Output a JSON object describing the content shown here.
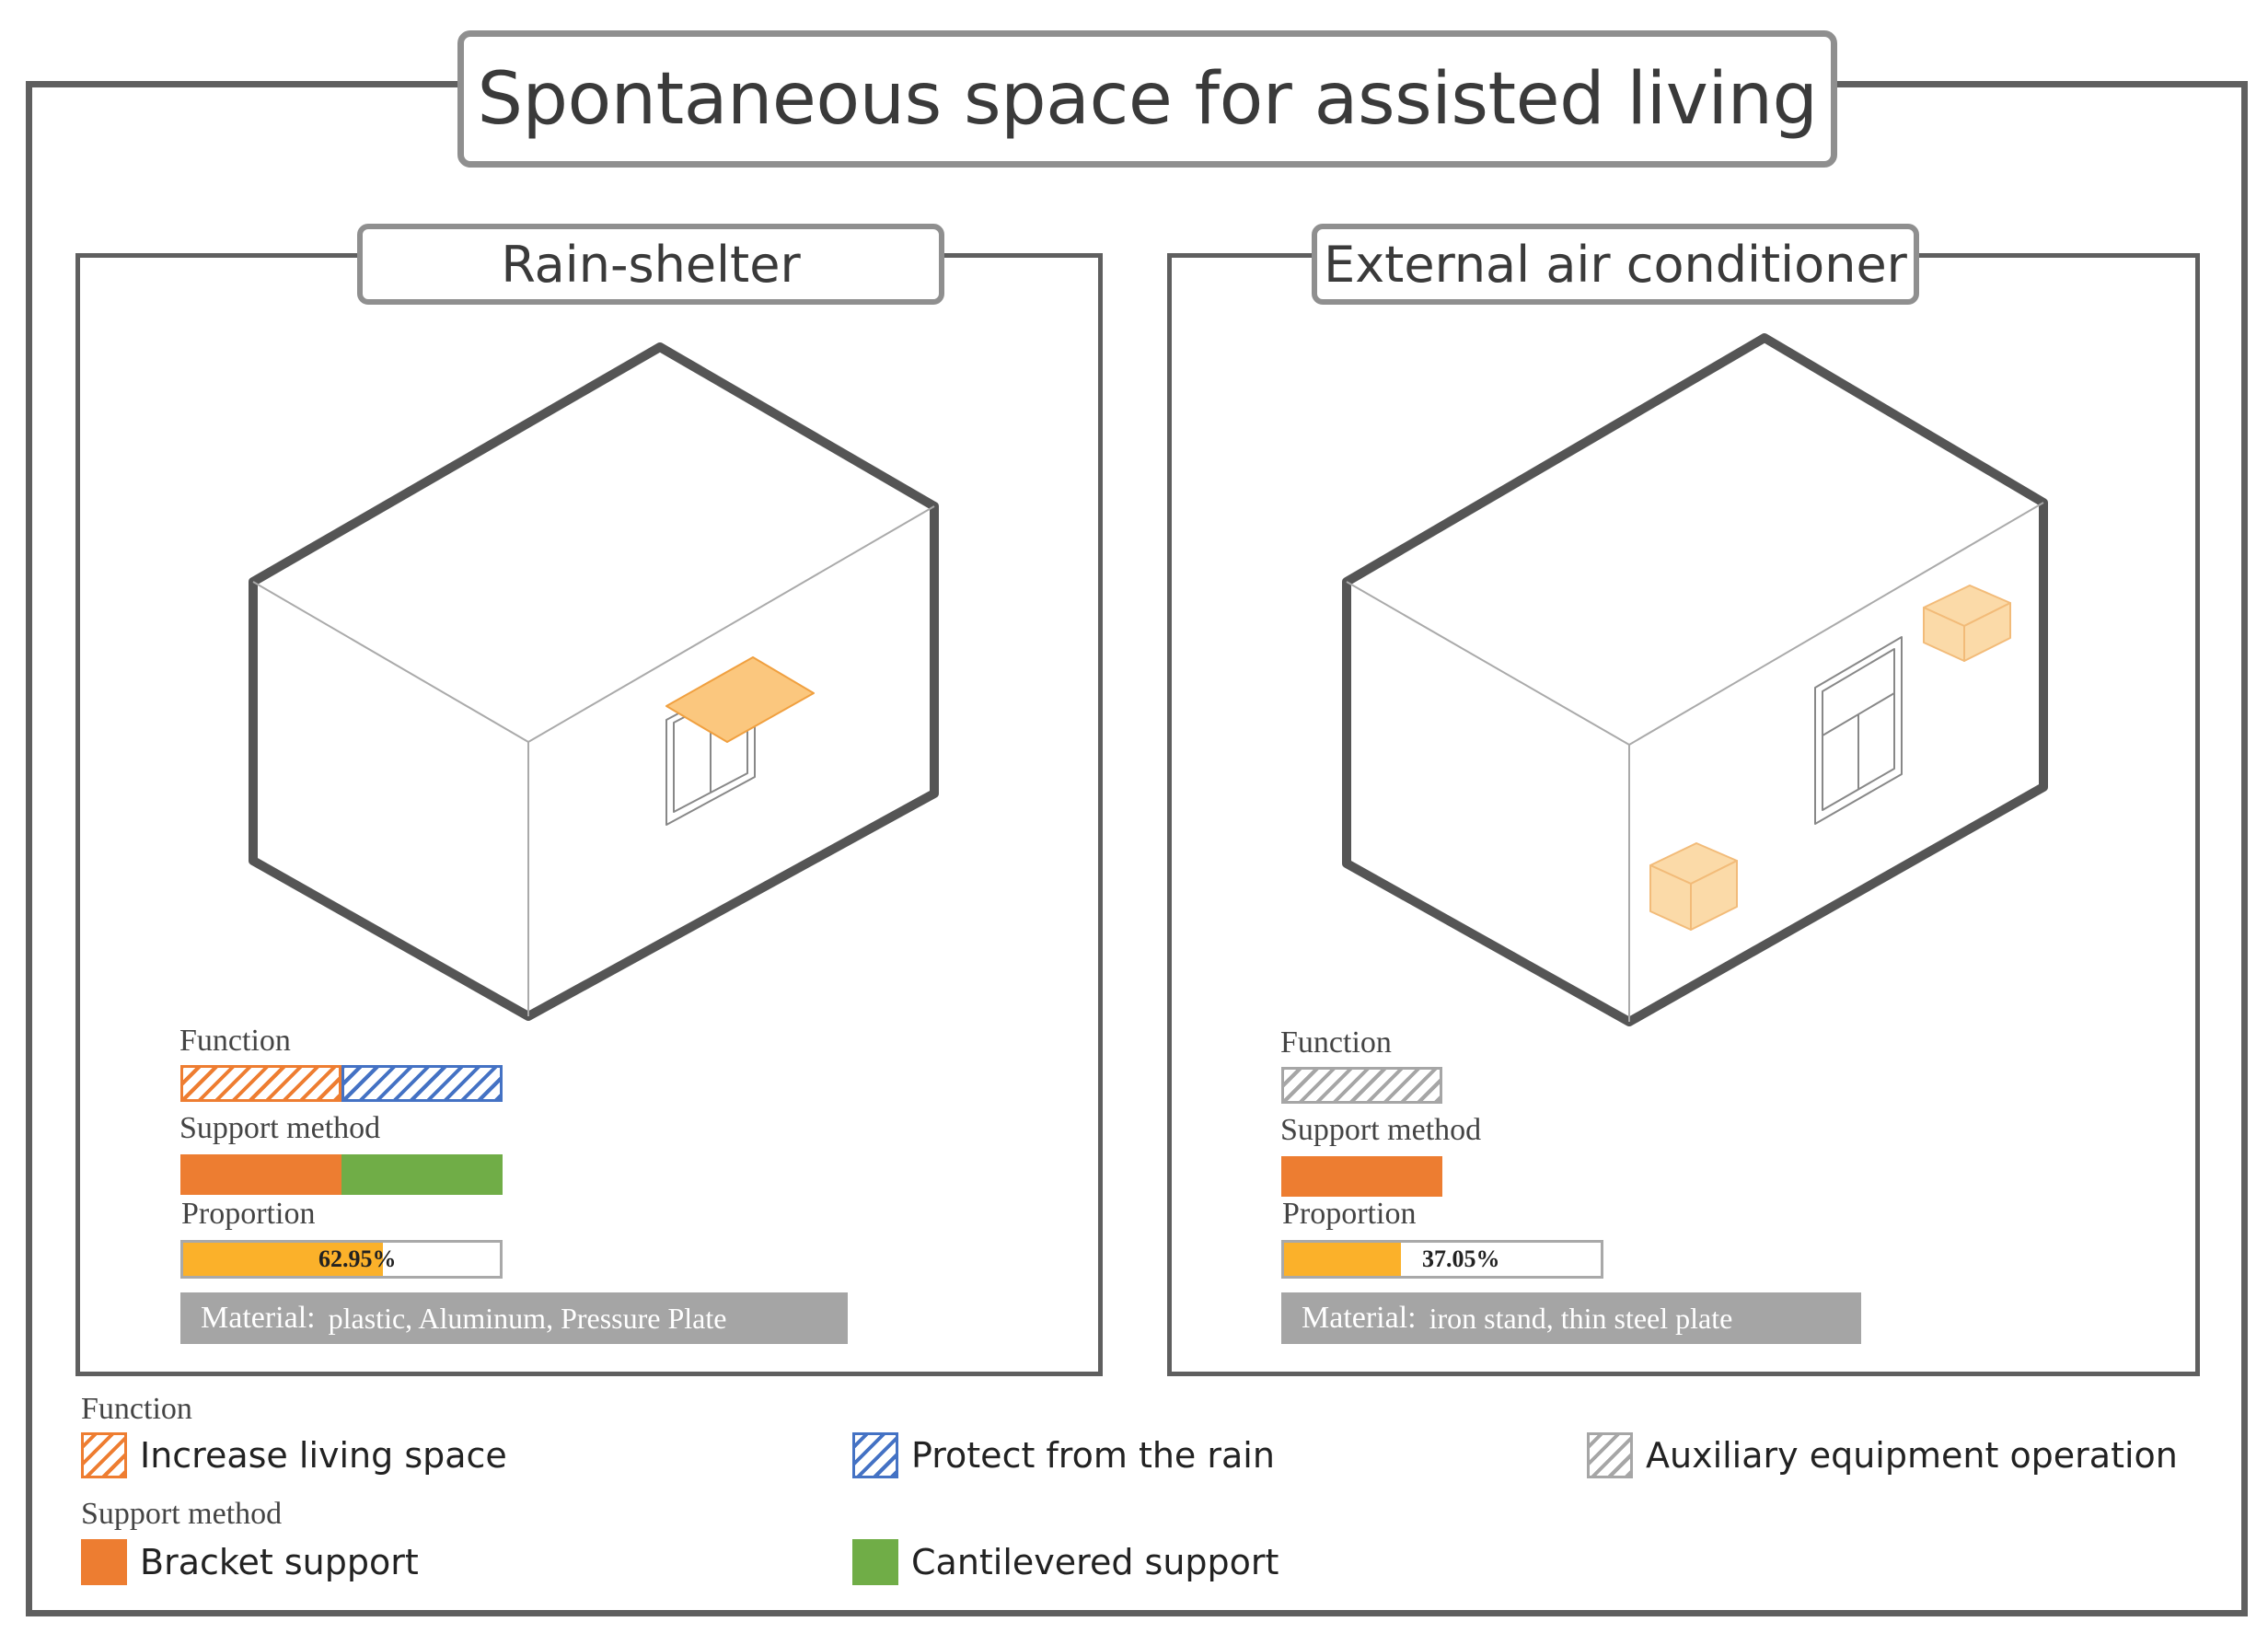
{
  "title": "Spontaneous space for assisted living",
  "panels": {
    "left": {
      "title": "Rain-shelter",
      "function_label": "Function",
      "support_label": "Support method",
      "proportion_label": "Proportion",
      "proportion_value": "62.95%",
      "proportion_fraction": 0.6295,
      "material_label": "Material:",
      "material_value": "plastic, Aluminum, Pressure Plate"
    },
    "right": {
      "title": "External air conditioner",
      "function_label": "Function",
      "support_label": "Support method",
      "proportion_label": "Proportion",
      "proportion_value": "37.05%",
      "proportion_fraction": 0.3705,
      "material_label": "Material:",
      "material_value": "iron stand, thin steel plate"
    }
  },
  "legend": {
    "function_heading": "Function",
    "support_heading": "Support method",
    "increase_living_space": "Increase living space",
    "protect_from_rain": "Protect from the rain",
    "auxiliary_equipment": "Auxiliary equipment operation",
    "bracket_support": "Bracket support",
    "cantilevered_support": "Cantilevered support"
  },
  "colors": {
    "orange": "#ed7d31",
    "blue": "#4472c4",
    "gray": "#a6a6a6",
    "green": "#70ad47",
    "proportion_fill": "#fbb12a",
    "highlight": "#fbc77e"
  }
}
